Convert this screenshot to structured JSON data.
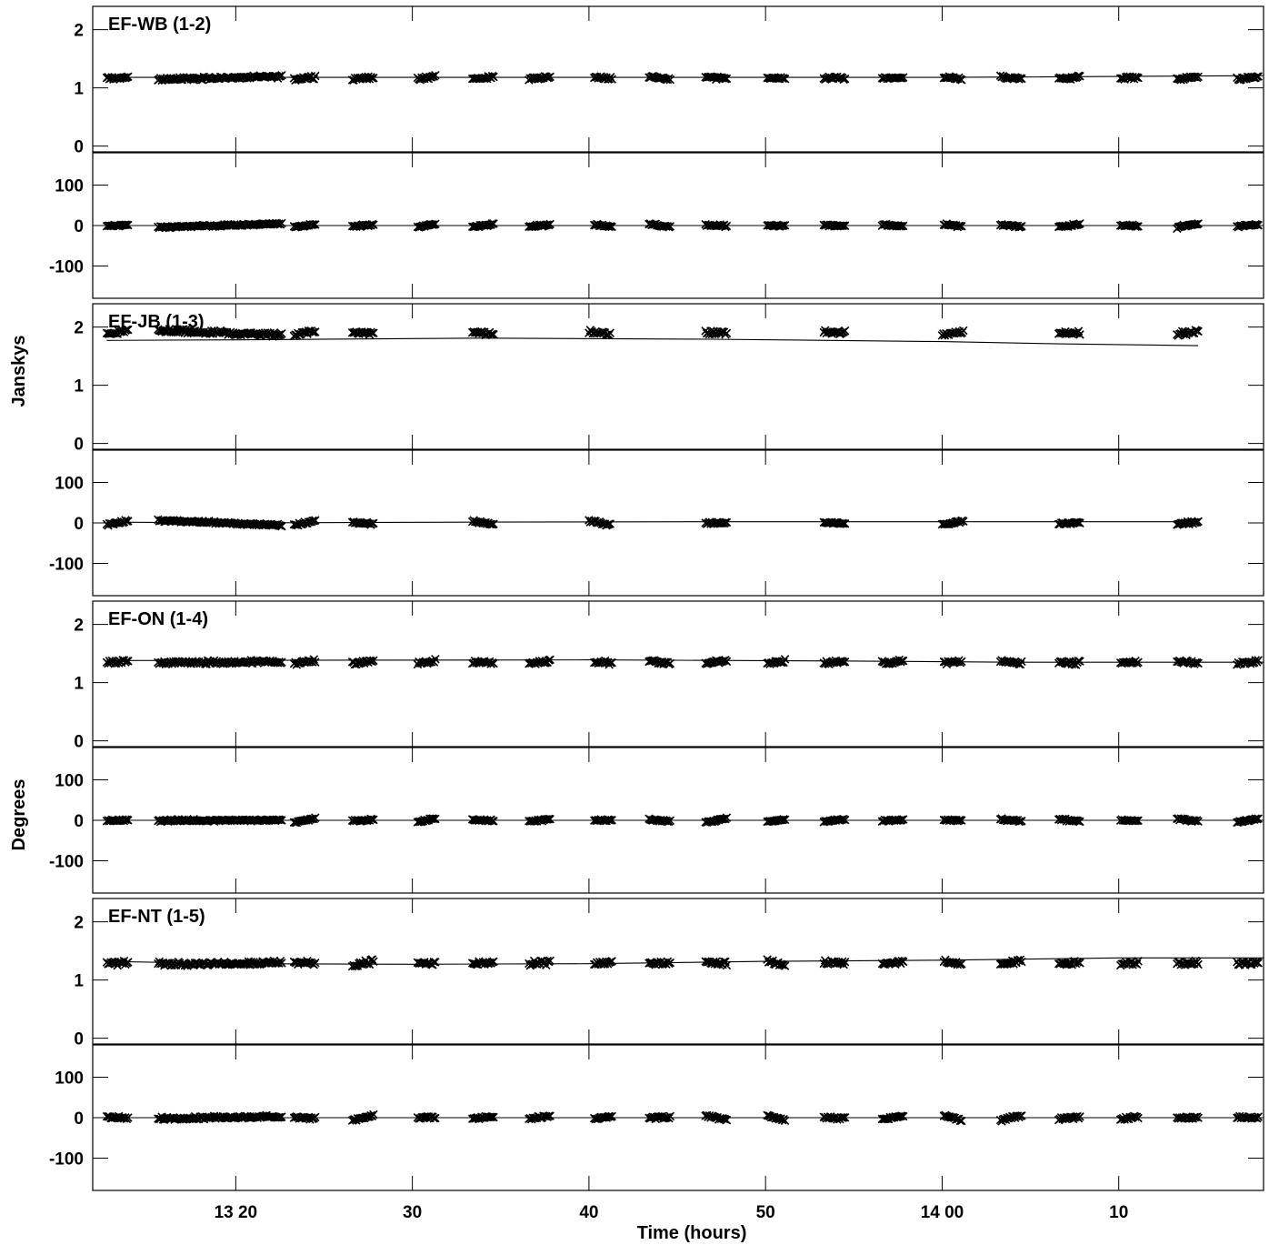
{
  "chart_data": {
    "type": "scatter",
    "ylabel_amp": "Janskys",
    "ylabel_phase": "Degrees",
    "xlabel": "Time (hours)",
    "x_ticks": [
      {
        "t": 20,
        "label": "13 20"
      },
      {
        "t": 30,
        "label": "30"
      },
      {
        "t": 40,
        "label": "40"
      },
      {
        "t": 50,
        "label": "50"
      },
      {
        "t": 60,
        "label": "14 00"
      },
      {
        "t": 70,
        "label": "10"
      }
    ],
    "x_range_minutes": [
      11.9,
      78.2
    ],
    "amp_ylim": [
      -0.1,
      2.4
    ],
    "amp_ticks": [
      0,
      1,
      2
    ],
    "phase_ylim": [
      -180,
      180
    ],
    "phase_ticks": [
      100,
      0,
      -100
    ],
    "scans_all": [
      {
        "t": 13.3,
        "w": 1.2
      },
      {
        "t": 19.1,
        "w": 7.0
      },
      {
        "t": 23.9,
        "w": 1.2
      },
      {
        "t": 27.2,
        "w": 1.2
      },
      {
        "t": 30.8,
        "w": 1.0
      },
      {
        "t": 34.0,
        "w": 1.2
      },
      {
        "t": 37.2,
        "w": 1.2
      },
      {
        "t": 40.8,
        "w": 1.0
      },
      {
        "t": 44.0,
        "w": 1.2
      },
      {
        "t": 47.2,
        "w": 1.2
      },
      {
        "t": 50.6,
        "w": 1.0
      },
      {
        "t": 53.9,
        "w": 1.2
      },
      {
        "t": 57.2,
        "w": 1.2
      },
      {
        "t": 60.6,
        "w": 1.0
      },
      {
        "t": 63.9,
        "w": 1.2
      },
      {
        "t": 67.2,
        "w": 1.2
      },
      {
        "t": 70.6,
        "w": 1.0
      },
      {
        "t": 73.9,
        "w": 1.2
      },
      {
        "t": 77.3,
        "w": 1.2
      }
    ],
    "scans_jb": [
      {
        "t": 13.3,
        "w": 1.2
      },
      {
        "t": 19.1,
        "w": 7.0
      },
      {
        "t": 23.9,
        "w": 1.2
      },
      {
        "t": 27.2,
        "w": 1.2
      },
      {
        "t": 34.0,
        "w": 1.2
      },
      {
        "t": 40.6,
        "w": 1.2
      },
      {
        "t": 47.2,
        "w": 1.2
      },
      {
        "t": 53.9,
        "w": 1.2
      },
      {
        "t": 60.6,
        "w": 1.2
      },
      {
        "t": 67.2,
        "w": 1.2
      },
      {
        "t": 73.9,
        "w": 1.2
      }
    ],
    "panels": [
      {
        "label": "EF-WB (1-2)",
        "scans": "all",
        "amp_level": 1.17,
        "amp_scatter": 0.035,
        "amp_model": [
          [
            12.7,
            1.18
          ],
          [
            60,
            1.18
          ],
          [
            78.2,
            1.21
          ]
        ],
        "phase_scatter": 4,
        "phase_model": [
          [
            12.7,
            0
          ],
          [
            78.2,
            0
          ]
        ]
      },
      {
        "label": "EF-JB (1-3)",
        "scans": "jb",
        "amp_level": 1.9,
        "amp_scatter": 0.05,
        "amp_model": [
          [
            12.7,
            1.77
          ],
          [
            20,
            1.78
          ],
          [
            34,
            1.81
          ],
          [
            47,
            1.79
          ],
          [
            60,
            1.75
          ],
          [
            67,
            1.71
          ],
          [
            74.5,
            1.68
          ]
        ],
        "phase_scatter": 5,
        "phase_model": [
          [
            12.7,
            2
          ],
          [
            20,
            0
          ],
          [
            34,
            2
          ],
          [
            47,
            3
          ],
          [
            74.5,
            3
          ]
        ]
      },
      {
        "label": "EF-ON (1-4)",
        "scans": "all",
        "amp_level": 1.35,
        "amp_scatter": 0.045,
        "amp_model": [
          [
            12.7,
            1.38
          ],
          [
            40,
            1.39
          ],
          [
            55,
            1.37
          ],
          [
            64,
            1.35
          ],
          [
            78.2,
            1.35
          ]
        ],
        "phase_scatter": 4,
        "phase_model": [
          [
            12.7,
            0
          ],
          [
            78.2,
            0
          ]
        ]
      },
      {
        "label": "EF-NT (1-5)",
        "scans": "all",
        "amp_level": 1.29,
        "amp_scatter": 0.05,
        "amp_model": [
          [
            12.7,
            1.32
          ],
          [
            20,
            1.28
          ],
          [
            30,
            1.27
          ],
          [
            40,
            1.28
          ],
          [
            50,
            1.32
          ],
          [
            60,
            1.34
          ],
          [
            70,
            1.38
          ],
          [
            78.2,
            1.38
          ]
        ],
        "phase_scatter": 6,
        "phase_model": [
          [
            12.7,
            0
          ],
          [
            78.2,
            0
          ]
        ]
      }
    ]
  }
}
